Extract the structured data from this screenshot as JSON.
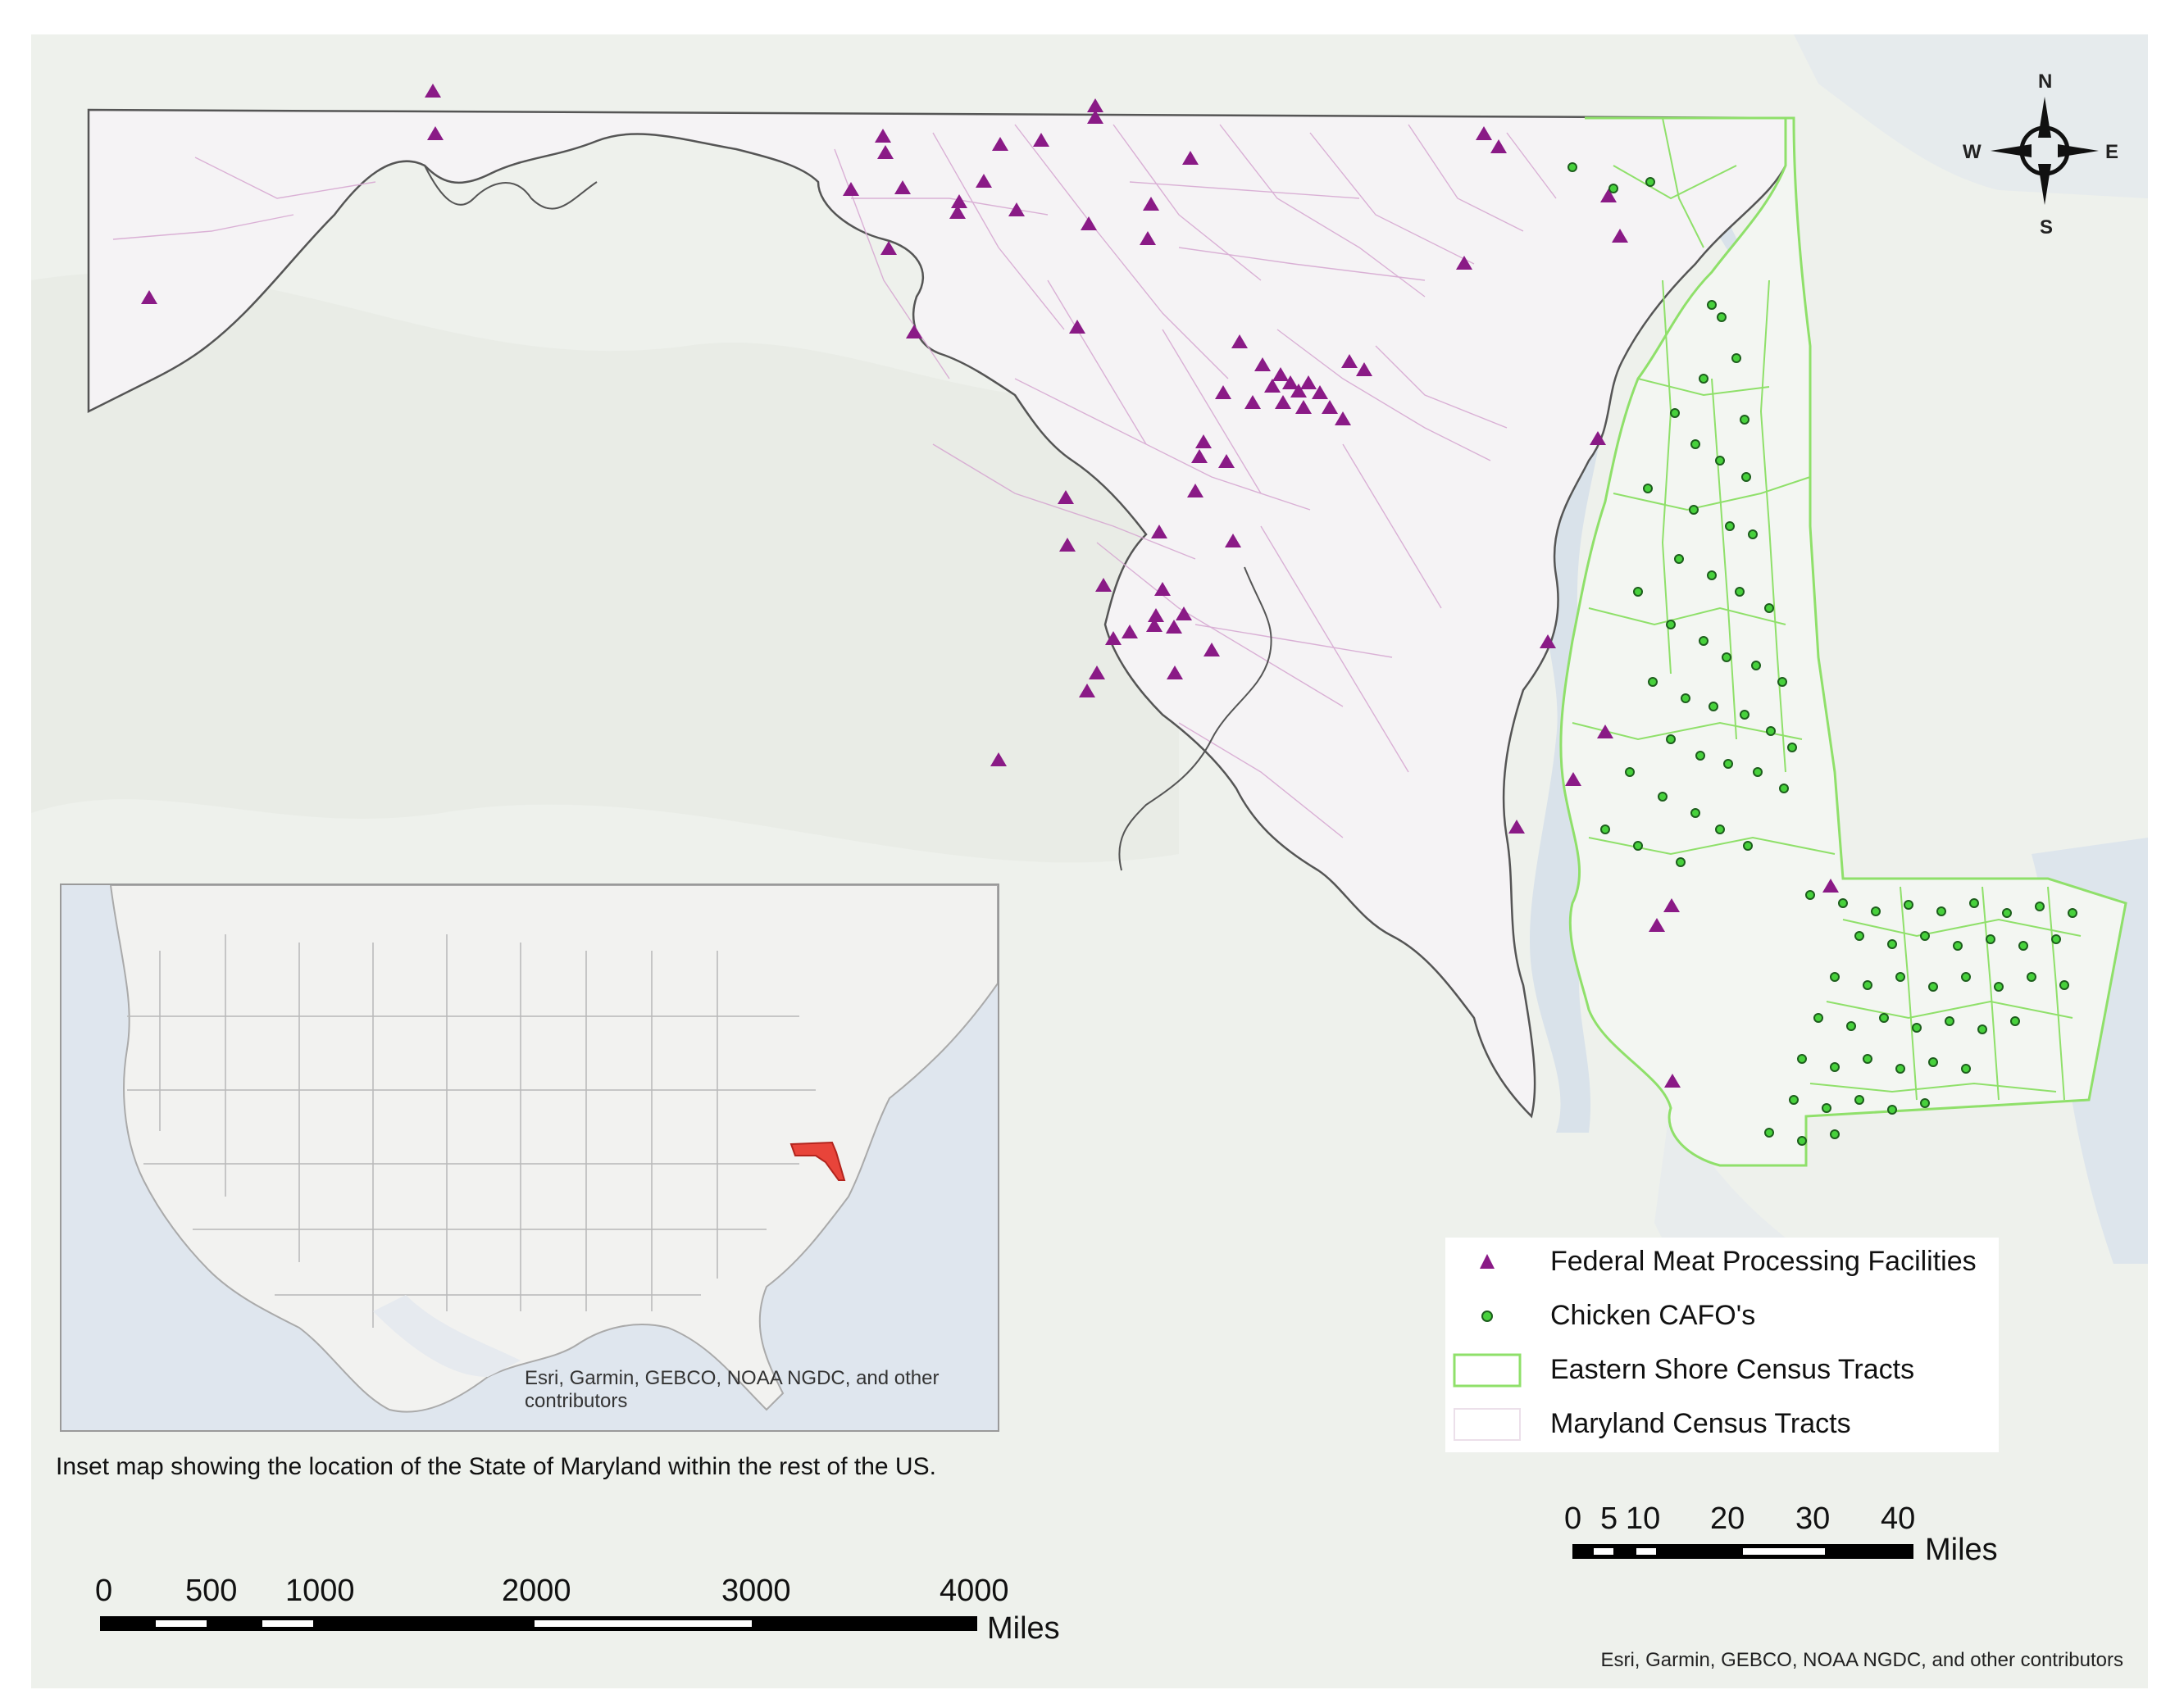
{
  "legend": {
    "items": [
      {
        "label": "Federal Meat Processing Facilities",
        "symbol": "triangle",
        "color": "#8a1a86"
      },
      {
        "label": "Chicken CAFO's",
        "symbol": "dot",
        "color": "#2f9a2f"
      },
      {
        "label": "Eastern Shore Census Tracts",
        "symbol": "outline-box",
        "color": "#8fe06a"
      },
      {
        "label": "Maryland Census Tracts",
        "symbol": "outline-box",
        "color": "#e4c8e0"
      }
    ]
  },
  "compass": {
    "n": "N",
    "s": "S",
    "e": "E",
    "w": "W"
  },
  "main_scale": {
    "ticks": [
      "0",
      "5",
      "10",
      "20",
      "30",
      "40"
    ],
    "unit": "Miles"
  },
  "inset": {
    "credit": "Esri, Garmin, GEBCO, NOAA NGDC, and other contributors",
    "caption": "Inset map showing the location of the State of Maryland within the rest of the US.",
    "highlight_color": "#e8443a"
  },
  "inset_scale": {
    "ticks": [
      "0",
      "500",
      "1000",
      "2000",
      "3000",
      "4000"
    ],
    "unit": "Miles"
  },
  "map_credit": "Esri, Garmin, GEBCO, NOAA NGDC, and other contributors",
  "colors": {
    "facility": "#8a1a86",
    "cafo_fill": "#47d13c",
    "eastern_shore": "#8fe06a",
    "md_tracts": "#d7a9d2",
    "water": "#dce4ec"
  }
}
